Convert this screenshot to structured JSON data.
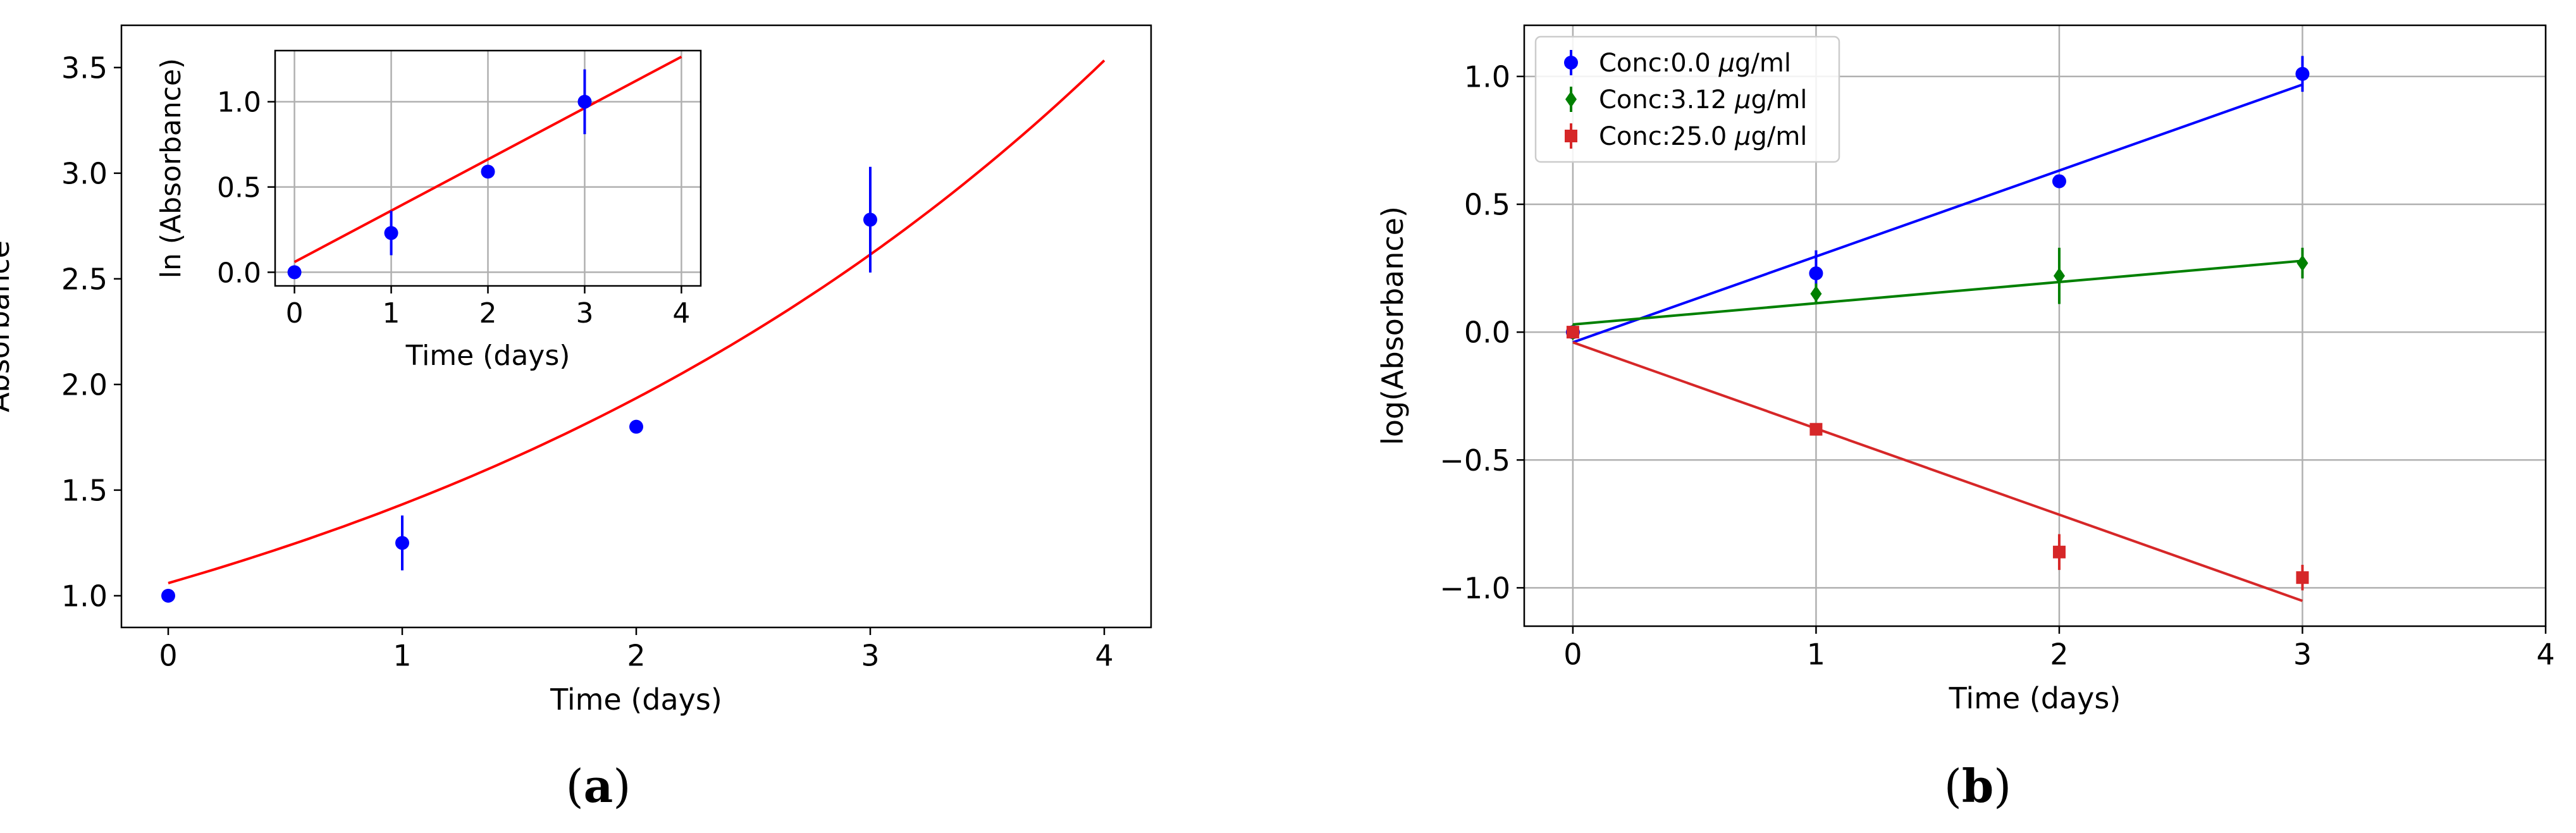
{
  "panel_labels": [
    {
      "open": "(",
      "letter": "a",
      "close": ")"
    },
    {
      "open": "(",
      "letter": "b",
      "close": ")"
    }
  ],
  "chart_data": [
    {
      "id": "a",
      "type": "scatter",
      "xlabel": "Time (days)",
      "ylabel": "Absorbance",
      "xlim": [
        -0.2,
        4.2
      ],
      "ylim": [
        0.85,
        3.7
      ],
      "xticks": [
        0,
        1,
        2,
        3,
        4
      ],
      "xtick_labels": [
        "0",
        "1",
        "2",
        "3",
        "4"
      ],
      "yticks": [
        1.0,
        1.5,
        2.0,
        2.5,
        3.0,
        3.5
      ],
      "ytick_labels": [
        "1.0",
        "1.5",
        "2.0",
        "2.5",
        "3.0",
        "3.5"
      ],
      "grid": false,
      "series": [
        {
          "name": "data",
          "color": "#0000ff",
          "marker": "circle",
          "x": [
            0,
            1,
            2,
            3
          ],
          "y": [
            1.0,
            1.25,
            1.8,
            2.78
          ],
          "yerr": [
            0.0,
            0.13,
            0.0,
            0.25
          ]
        }
      ],
      "fit": {
        "kind": "exponential",
        "color": "#ff0000",
        "a": 1.06,
        "b": 0.301,
        "x_range": [
          0,
          4
        ]
      },
      "inset": {
        "xlabel": "Time (days)",
        "ylabel": "ln (Absorbance)",
        "xlim": [
          -0.2,
          4.2
        ],
        "ylim": [
          -0.08,
          1.3
        ],
        "xticks": [
          0,
          1,
          2,
          3,
          4
        ],
        "xtick_labels": [
          "0",
          "1",
          "2",
          "3",
          "4"
        ],
        "yticks": [
          0.0,
          0.5,
          1.0
        ],
        "ytick_labels": [
          "0.0",
          "0.5",
          "1.0"
        ],
        "grid": true,
        "series": [
          {
            "name": "ln data",
            "color": "#0000ff",
            "marker": "circle",
            "x": [
              0,
              1,
              2,
              3
            ],
            "y": [
              0.0,
              0.23,
              0.59,
              1.0
            ],
            "yerr": [
              0.0,
              0.13,
              0.0,
              0.19
            ]
          }
        ],
        "fit": {
          "kind": "linear",
          "color": "#ff0000",
          "slope": 0.301,
          "intercept": 0.06,
          "x_range": [
            0,
            4
          ]
        }
      }
    },
    {
      "id": "b",
      "type": "scatter",
      "xlabel": "Time (days)",
      "ylabel": "log(Absorbance)",
      "xlim": [
        -0.2,
        4.0
      ],
      "ylim": [
        -1.15,
        1.2
      ],
      "xticks": [
        0,
        1,
        2,
        3,
        4
      ],
      "xtick_labels": [
        "0",
        "1",
        "2",
        "3",
        "4"
      ],
      "yticks": [
        -1.0,
        -0.5,
        0.0,
        0.5,
        1.0
      ],
      "ytick_labels": [
        "−1.0",
        "−0.5",
        "0.0",
        "0.5",
        "1.0"
      ],
      "grid": true,
      "legend_position": "top-left",
      "series": [
        {
          "name": "Conc:0.0",
          "unit_mu": "μ",
          "unit_rest": "g/ml",
          "color": "#0000ff",
          "marker": "circle",
          "x": [
            0,
            1,
            2,
            3
          ],
          "y": [
            0.0,
            0.23,
            0.59,
            1.01
          ],
          "yerr": [
            0.0,
            0.09,
            0.0,
            0.07
          ],
          "fit": {
            "slope": 0.336,
            "intercept": -0.04
          }
        },
        {
          "name": "Conc:3.12",
          "unit_mu": "μ",
          "unit_rest": "g/ml",
          "color": "#008000",
          "marker": "diamond",
          "x": [
            0,
            1,
            2,
            3
          ],
          "y": [
            0.0,
            0.15,
            0.22,
            0.27
          ],
          "yerr": [
            0.0,
            0.04,
            0.11,
            0.06
          ],
          "fit": {
            "slope": 0.083,
            "intercept": 0.03
          }
        },
        {
          "name": "Conc:25.0",
          "unit_mu": "μ",
          "unit_rest": "g/ml",
          "color": "#d62728",
          "marker": "square",
          "x": [
            0,
            1,
            2,
            3
          ],
          "y": [
            0.0,
            -0.38,
            -0.86,
            -0.96
          ],
          "yerr": [
            0.0,
            0.0,
            0.07,
            0.05
          ],
          "fit": {
            "slope": -0.337,
            "intercept": -0.04
          }
        }
      ]
    }
  ]
}
